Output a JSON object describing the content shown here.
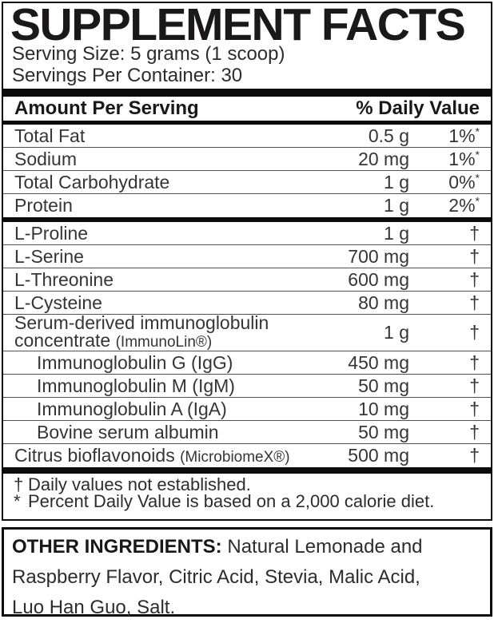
{
  "panel": {
    "title": "SUPPLEMENT FACTS",
    "serving_size": "Serving Size: 5 grams (1 scoop)",
    "servings_per_container": "Servings Per Container: 30",
    "header": {
      "amount": "Amount Per Serving",
      "daily_value": "% Daily Value"
    },
    "rows": [
      {
        "name": "Total Fat",
        "amount": "0.5 g",
        "dv": "1%",
        "dv_note": "*"
      },
      {
        "name": "Sodium",
        "amount": "20 mg",
        "dv": "1%",
        "dv_note": "*"
      },
      {
        "name": "Total Carbohydrate",
        "amount": "1 g",
        "dv": "0%",
        "dv_note": "*"
      },
      {
        "name": "Protein",
        "amount": "1 g",
        "dv": "2%",
        "dv_note": "*"
      },
      {
        "name": "L-Proline",
        "amount": "1 g",
        "dv": "†"
      },
      {
        "name": "L-Serine",
        "amount": "700 mg",
        "dv": "†"
      },
      {
        "name": "L-Threonine",
        "amount": "600 mg",
        "dv": "†"
      },
      {
        "name": "L-Cysteine",
        "amount": "80 mg",
        "dv": "†"
      },
      {
        "name_line1": "Serum-derived immunoglobulin",
        "name_line2": "concentrate",
        "name_line2_small": "(ImmunoLin®)",
        "amount": "1 g",
        "dv": "†"
      },
      {
        "name": "Immunoglobulin G (IgG)",
        "amount": "450 mg",
        "dv": "†"
      },
      {
        "name": "Immunoglobulin M (IgM)",
        "amount": "50 mg",
        "dv": "†"
      },
      {
        "name": "Immunoglobulin A (IgA)",
        "amount": "10 mg",
        "dv": "†"
      },
      {
        "name": "Bovine serum albumin",
        "amount": "50 mg",
        "dv": "†"
      },
      {
        "name": "Citrus bioflavonoids",
        "name_small": "(MicrobiomeX®)",
        "amount": "500 mg",
        "dv": "†"
      }
    ],
    "footnotes": [
      {
        "marker": "†",
        "text": "Daily values not established."
      },
      {
        "marker": "*",
        "text": "Percent Daily Value is based on a 2,000 calorie diet."
      }
    ]
  },
  "other_ingredients": {
    "label": "OTHER INGREDIENTS:",
    "line1_rest": " Natural Lemonade and",
    "line2": "Raspberry Flavor, Citric Acid, Stevia, Malic Acid,",
    "line3": "Luo Han Guo, Salt."
  },
  "colors": {
    "text": "#231f20",
    "bar": "#0b0b0b",
    "separator": "#505155",
    "background": "#ffffff"
  }
}
